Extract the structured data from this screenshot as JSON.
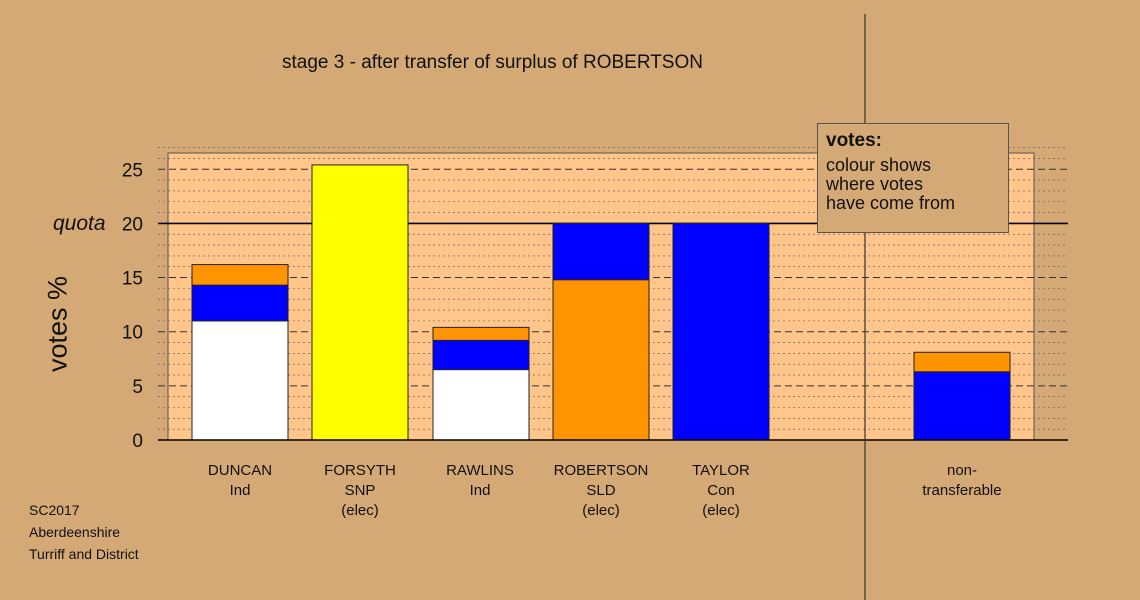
{
  "title": "stage 3 - after transfer of surplus of ROBERTSON",
  "ylabel": "votes %",
  "quota_label": "quota",
  "legend": {
    "title": "votes:",
    "lines": [
      "colour shows",
      "where votes",
      "have come from"
    ]
  },
  "footer": [
    "SC2017",
    "Aberdeenshire",
    "Turriff and District"
  ],
  "candidates": [
    {
      "name": "DUNCAN",
      "party": "Ind",
      "status": ""
    },
    {
      "name": "FORSYTH",
      "party": "SNP",
      "status": "(elec)"
    },
    {
      "name": "RAWLINS",
      "party": "Ind",
      "status": ""
    },
    {
      "name": "ROBERTSON",
      "party": "SLD",
      "status": "(elec)"
    },
    {
      "name": "TAYLOR",
      "party": "Con",
      "status": "(elec)"
    },
    {
      "name": "non-",
      "party": "transferable",
      "status": ""
    }
  ],
  "chart_data": {
    "type": "bar",
    "stacked": true,
    "ylim": [
      0,
      26.5
    ],
    "yticks": [
      "0",
      "5",
      "10",
      "15",
      "20",
      "25"
    ],
    "quota": 20,
    "grid": true,
    "colors": {
      "white": "#ffffff",
      "blue": "#0000ff",
      "orange": "#ff9400",
      "yellow": "#ffff00"
    },
    "bars": [
      {
        "candidate": "DUNCAN",
        "segments": [
          {
            "color": "white",
            "value": 11.0
          },
          {
            "color": "blue",
            "value": 3.3
          },
          {
            "color": "orange",
            "value": 1.9
          }
        ]
      },
      {
        "candidate": "FORSYTH",
        "segments": [
          {
            "color": "yellow",
            "value": 25.4
          }
        ]
      },
      {
        "candidate": "RAWLINS",
        "segments": [
          {
            "color": "white",
            "value": 6.5
          },
          {
            "color": "blue",
            "value": 2.7
          },
          {
            "color": "orange",
            "value": 1.2
          }
        ]
      },
      {
        "candidate": "ROBERTSON",
        "segments": [
          {
            "color": "orange",
            "value": 14.8
          },
          {
            "color": "blue",
            "value": 5.2
          }
        ]
      },
      {
        "candidate": "TAYLOR",
        "segments": [
          {
            "color": "blue",
            "value": 20.0
          }
        ]
      },
      {
        "candidate": "non-transferable",
        "segments": [
          {
            "color": "blue",
            "value": 6.3
          },
          {
            "color": "orange",
            "value": 1.8
          }
        ]
      }
    ]
  }
}
